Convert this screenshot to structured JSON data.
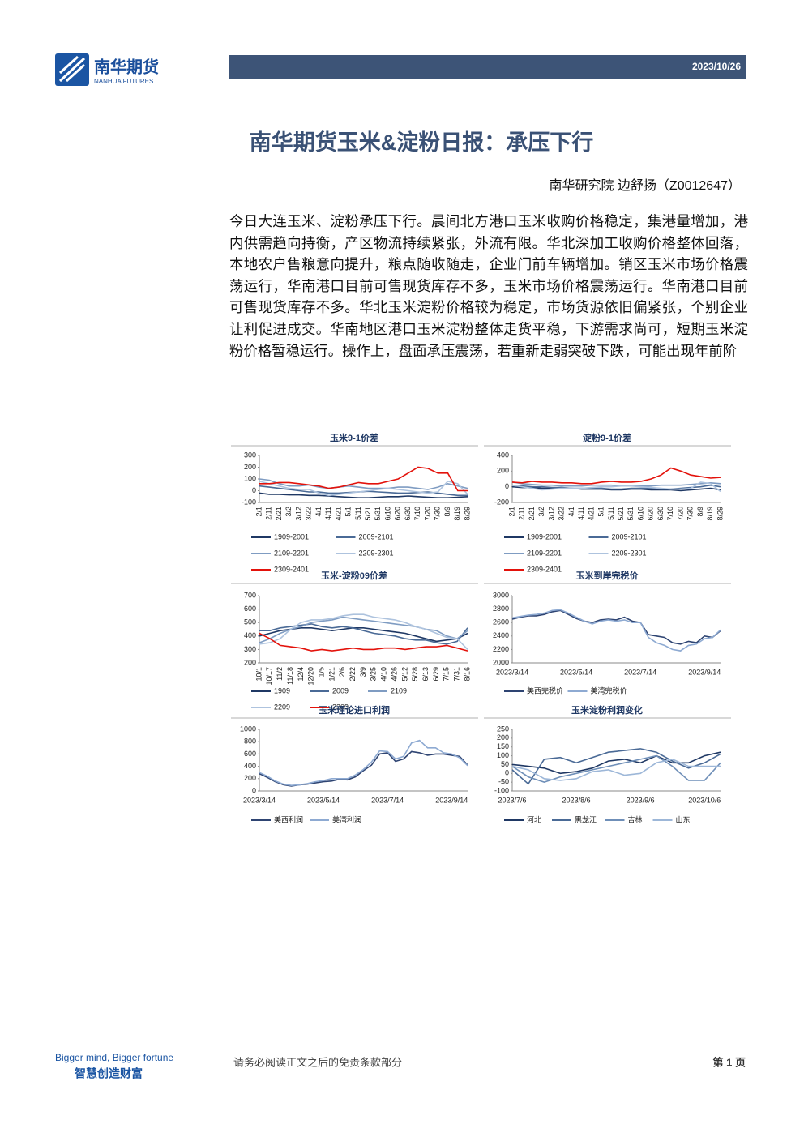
{
  "header": {
    "logo_cn": "南华期货",
    "logo_en": "NANHUA FUTURES",
    "date": "2023/10/26"
  },
  "title": "南华期货玉米&淀粉日报：承压下行",
  "author": "南华研究院 边舒扬（Z0012647）",
  "body": "今日大连玉米、淀粉承压下行。晨间北方港口玉米收购价格稳定，集港量增加，港内供需趋向持衡，产区物流持续紧张，外流有限。华北深加工收购价格整体回落，本地农户售粮意向提升，粮点随收随走，企业门前车辆增加。销区玉米市场价格震荡运行，华南港口目前可售现货库存不多，玉米市场价格震荡运行。华南港口目前可售现货库存不多。华北玉米淀粉价格较为稳定，市场货源依旧偏紧张，个别企业让利促进成交。华南地区港口玉米淀粉整体走货平稳，下游需求尚可，短期玉米淀粉价格暂稳运行。操作上，盘面承压震荡，若重新走弱突破下跌，可能出现年前阶",
  "chart_data": [
    {
      "type": "line",
      "title": "玉米9-1价差",
      "ylim": [
        -100,
        300
      ],
      "yticks": [
        -100,
        0,
        100,
        200,
        300
      ],
      "categories": [
        "2/1",
        "2/11",
        "2/21",
        "3/2",
        "3/12",
        "3/22",
        "4/1",
        "4/11",
        "4/21",
        "5/1",
        "5/11",
        "5/21",
        "5/31",
        "6/10",
        "6/20",
        "6/30",
        "7/10",
        "7/20",
        "7/30",
        "8/9",
        "8/19",
        "8/29"
      ],
      "series": [
        {
          "name": "1909-2001",
          "color": "#1f3864",
          "values": [
            -20,
            -30,
            -30,
            -35,
            -35,
            -40,
            -40,
            -45,
            -50,
            -55,
            -60,
            -60,
            -55,
            -50,
            -50,
            -45,
            -50,
            -55,
            -60,
            -60,
            -55,
            -50
          ]
        },
        {
          "name": "2009-2101",
          "color": "#4a6a96",
          "values": [
            40,
            30,
            20,
            10,
            0,
            -10,
            -10,
            -20,
            -20,
            -15,
            -10,
            -5,
            -10,
            -15,
            -20,
            -20,
            -15,
            -10,
            -20,
            -30,
            -40,
            -40
          ]
        },
        {
          "name": "2109-2201",
          "color": "#7f9cc2",
          "values": [
            100,
            90,
            60,
            40,
            40,
            50,
            30,
            20,
            30,
            40,
            30,
            20,
            20,
            20,
            30,
            30,
            20,
            10,
            30,
            60,
            40,
            20
          ]
        },
        {
          "name": "2209-2301",
          "color": "#aec3de",
          "values": [
            80,
            60,
            40,
            20,
            10,
            10,
            -20,
            -40,
            -30,
            -20,
            -10,
            0,
            10,
            20,
            10,
            0,
            -10,
            -20,
            -10,
            80,
            60,
            -30
          ]
        },
        {
          "name": "2309-2401",
          "color": "#e3120b",
          "values": [
            60,
            60,
            70,
            70,
            60,
            50,
            40,
            20,
            30,
            50,
            70,
            60,
            60,
            80,
            100,
            150,
            200,
            190,
            150,
            150,
            0,
            0
          ]
        }
      ]
    },
    {
      "type": "line",
      "title": "淀粉9-1价差",
      "ylim": [
        -200,
        400
      ],
      "yticks": [
        -200,
        0,
        200,
        400
      ],
      "categories": [
        "2/1",
        "2/11",
        "2/21",
        "3/2",
        "3/12",
        "3/22",
        "4/1",
        "4/11",
        "4/21",
        "5/1",
        "5/11",
        "5/21",
        "5/31",
        "6/10",
        "6/20",
        "6/30",
        "7/10",
        "7/20",
        "7/30",
        "8/9",
        "8/19",
        "8/29"
      ],
      "series": [
        {
          "name": "1909-2001",
          "color": "#1f3864",
          "values": [
            0,
            -10,
            -10,
            -20,
            -20,
            -20,
            -20,
            -30,
            -30,
            -30,
            -40,
            -40,
            -30,
            -30,
            -40,
            -40,
            -40,
            -50,
            -40,
            -30,
            -20,
            -40
          ]
        },
        {
          "name": "2009-2101",
          "color": "#4a6a96",
          "values": [
            20,
            10,
            0,
            0,
            -10,
            -10,
            -20,
            -20,
            -20,
            -20,
            -30,
            -30,
            -20,
            -20,
            -20,
            -30,
            -30,
            -20,
            -10,
            0,
            20,
            0
          ]
        },
        {
          "name": "2109-2201",
          "color": "#7f9cc2",
          "values": [
            60,
            40,
            30,
            20,
            20,
            10,
            10,
            10,
            20,
            20,
            20,
            10,
            10,
            10,
            10,
            20,
            20,
            20,
            30,
            40,
            50,
            40
          ]
        },
        {
          "name": "2209-2301",
          "color": "#aec3de",
          "values": [
            20,
            0,
            -20,
            -40,
            -30,
            -20,
            -20,
            -20,
            -10,
            0,
            0,
            10,
            10,
            0,
            -10,
            -20,
            -30,
            -30,
            -20,
            60,
            40,
            -60
          ]
        },
        {
          "name": "2309-2401",
          "color": "#e3120b",
          "values": [
            60,
            50,
            70,
            60,
            60,
            50,
            50,
            40,
            40,
            60,
            70,
            60,
            60,
            70,
            100,
            150,
            240,
            200,
            150,
            130,
            110,
            120
          ]
        }
      ]
    },
    {
      "type": "line",
      "title": "玉米-淀粉09价差",
      "ylim": [
        200,
        700
      ],
      "yticks": [
        200,
        300,
        400,
        500,
        600,
        700
      ],
      "categories": [
        "10/1",
        "10/17",
        "11/2",
        "11/18",
        "12/4",
        "12/20",
        "1/5",
        "1/21",
        "2/6",
        "2/22",
        "3/9",
        "3/25",
        "4/10",
        "4/26",
        "5/12",
        "5/28",
        "6/13",
        "6/29",
        "7/15",
        "7/31",
        "8/16"
      ],
      "series": [
        {
          "name": "1909",
          "color": "#1f3864",
          "values": [
            400,
            420,
            440,
            450,
            460,
            460,
            450,
            440,
            450,
            460,
            460,
            450,
            440,
            430,
            420,
            400,
            380,
            360,
            370,
            380,
            420
          ]
        },
        {
          "name": "2009",
          "color": "#4a6a96",
          "values": [
            440,
            440,
            460,
            470,
            480,
            490,
            470,
            460,
            470,
            460,
            440,
            420,
            410,
            400,
            380,
            370,
            370,
            350,
            340,
            360,
            460
          ]
        },
        {
          "name": "2109",
          "color": "#7f9cc2",
          "values": [
            350,
            380,
            420,
            450,
            470,
            500,
            510,
            520,
            540,
            530,
            520,
            510,
            500,
            490,
            480,
            470,
            450,
            440,
            400,
            380,
            440
          ]
        },
        {
          "name": "2209",
          "color": "#aec3de",
          "values": [
            340,
            350,
            380,
            450,
            500,
            520,
            520,
            530,
            550,
            560,
            560,
            540,
            530,
            520,
            500,
            470,
            450,
            420,
            390,
            380,
            300
          ]
        },
        {
          "name": "2309",
          "color": "#e3120b",
          "values": [
            420,
            380,
            330,
            320,
            310,
            290,
            300,
            290,
            300,
            310,
            300,
            300,
            310,
            310,
            300,
            310,
            320,
            320,
            330,
            310,
            290
          ]
        }
      ]
    },
    {
      "type": "line",
      "title": "玉米到岸完税价",
      "ylim": [
        2000,
        3000
      ],
      "yticks": [
        2000,
        2200,
        2400,
        2600,
        2800,
        3000
      ],
      "categories": [
        "2023/3/14",
        null,
        null,
        null,
        null,
        null,
        null,
        null,
        "2023/5/14",
        null,
        null,
        null,
        null,
        null,
        null,
        null,
        "2023/7/14",
        null,
        null,
        null,
        null,
        null,
        null,
        null,
        "2023/9/14",
        null,
        null
      ],
      "series": [
        {
          "name": "美西完税价",
          "color": "#2e4472",
          "values": [
            2650,
            2680,
            2700,
            2700,
            2720,
            2760,
            2780,
            2720,
            2660,
            2620,
            2600,
            2640,
            2650,
            2640,
            2680,
            2620,
            2600,
            2420,
            2400,
            2380,
            2300,
            2280,
            2320,
            2300,
            2400,
            2380,
            2480
          ]
        },
        {
          "name": "美湾完税价",
          "color": "#8eaad2",
          "values": [
            2670,
            2690,
            2710,
            2720,
            2740,
            2780,
            2790,
            2740,
            2680,
            2620,
            2580,
            2620,
            2640,
            2620,
            2640,
            2600,
            2600,
            2380,
            2300,
            2260,
            2200,
            2180,
            2260,
            2280,
            2360,
            2380,
            2490
          ]
        }
      ]
    },
    {
      "type": "line",
      "title": "玉米理论进口利润",
      "ylim": [
        0,
        1000
      ],
      "yticks": [
        0,
        200,
        400,
        600,
        800,
        1000
      ],
      "categories": [
        "2023/3/14",
        null,
        null,
        null,
        null,
        null,
        null,
        null,
        "2023/5/14",
        null,
        null,
        null,
        null,
        null,
        null,
        null,
        "2023/7/14",
        null,
        null,
        null,
        null,
        null,
        null,
        null,
        "2023/9/14",
        null,
        null
      ],
      "series": [
        {
          "name": "美西利润",
          "color": "#2e4472",
          "values": [
            280,
            220,
            150,
            100,
            80,
            100,
            110,
            130,
            150,
            160,
            190,
            180,
            230,
            330,
            420,
            600,
            620,
            480,
            520,
            640,
            620,
            580,
            600,
            600,
            580,
            560,
            420
          ]
        },
        {
          "name": "美湾利润",
          "color": "#8eaad2",
          "values": [
            300,
            240,
            160,
            110,
            90,
            100,
            120,
            150,
            170,
            200,
            200,
            200,
            260,
            350,
            470,
            650,
            640,
            520,
            560,
            780,
            820,
            700,
            700,
            620,
            600,
            540,
            410
          ]
        }
      ]
    },
    {
      "type": "line",
      "title": "玉米淀粉利润变化",
      "ylim": [
        -100,
        250
      ],
      "yticks": [
        -100,
        -50,
        0,
        50,
        100,
        150,
        200,
        250
      ],
      "categories": [
        "2023/7/6",
        null,
        null,
        null,
        "2023/8/6",
        null,
        null,
        null,
        "2023/9/6",
        null,
        null,
        null,
        "2023/10/6",
        null
      ],
      "series": [
        {
          "name": "河北",
          "color": "#1f3864",
          "values": [
            50,
            40,
            30,
            0,
            10,
            30,
            70,
            80,
            60,
            100,
            60,
            60,
            100,
            120
          ]
        },
        {
          "name": "黑龙江",
          "color": "#4a6a96",
          "values": [
            20,
            -60,
            80,
            90,
            60,
            90,
            120,
            130,
            140,
            120,
            70,
            30,
            60,
            110
          ]
        },
        {
          "name": "吉林",
          "color": "#6f8fb8",
          "values": [
            40,
            -20,
            -50,
            -20,
            0,
            20,
            40,
            60,
            80,
            100,
            40,
            -40,
            -40,
            60
          ]
        },
        {
          "name": "山东",
          "color": "#9db7d8",
          "values": [
            40,
            20,
            -30,
            -40,
            -30,
            10,
            20,
            -10,
            0,
            60,
            80,
            40,
            40,
            40
          ]
        }
      ]
    }
  ],
  "footer": {
    "slogan_en": "Bigger mind, Bigger fortune",
    "slogan_cn": "智慧创造财富",
    "disclaimer": "请务必阅读正文之后的免责条款部分",
    "page": "第 1 页"
  }
}
